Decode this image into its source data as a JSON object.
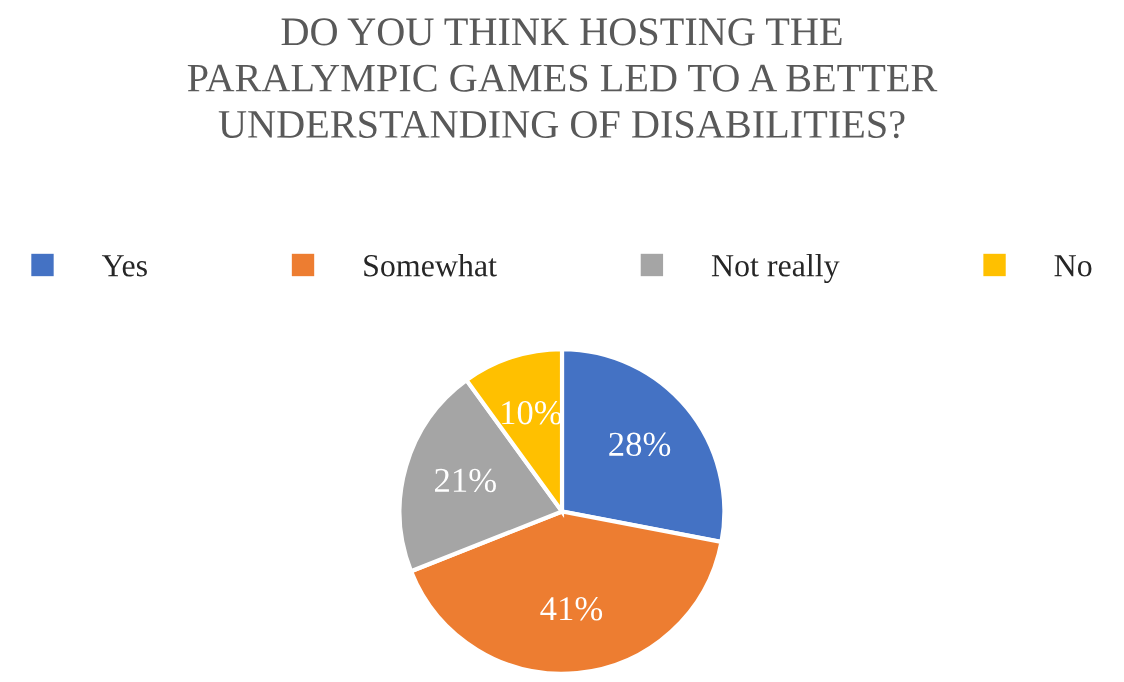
{
  "chart_data": {
    "type": "pie",
    "title": "DO YOU THINK HOSTING THE\nPARALYMPIC GAMES LED TO A BETTER\nUNDERSTANDING OF DISABILITIES?",
    "categories": [
      "Yes",
      "Somewhat",
      "Not really",
      "No"
    ],
    "values": [
      28,
      41,
      21,
      10
    ],
    "colors": [
      "#4472c4",
      "#ed7d31",
      "#a5a5a5",
      "#ffc000"
    ],
    "value_labels": [
      "28%",
      "41%",
      "21%",
      "10%"
    ],
    "legend": "top"
  }
}
